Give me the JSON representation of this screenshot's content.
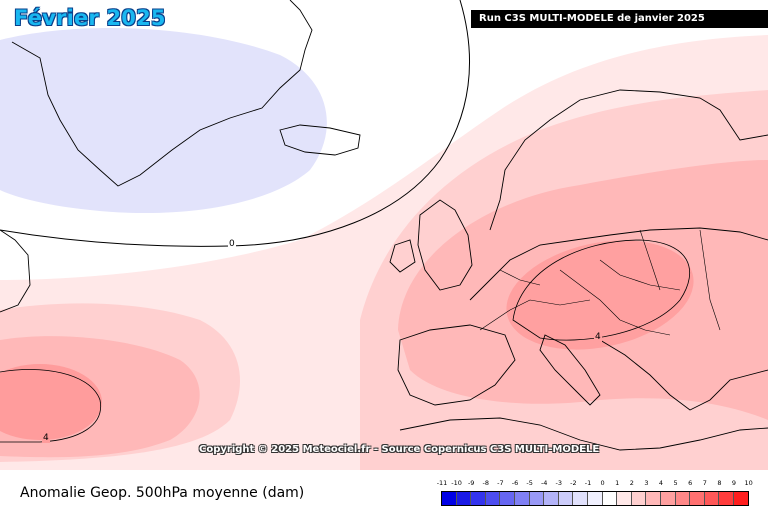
{
  "header": {
    "title": "Février 2025",
    "run_label": "Run C3S MULTI-MODELE de janvier 2025"
  },
  "map": {
    "copyright": "Copyright © 2025 Meteociel.fr - Source Copernicus C3S MULTI-MODELE",
    "contour_labels": [
      "0",
      "4",
      "4"
    ]
  },
  "footer": {
    "parameter_label": "Anomalie Geop. 500hPa moyenne (dam)"
  },
  "scale": {
    "ticks": [
      "-11",
      "-10",
      "-9",
      "-8",
      "-7",
      "-6",
      "-5",
      "-4",
      "-3",
      "-2",
      "-1",
      "0",
      "1",
      "2",
      "3",
      "4",
      "5",
      "6",
      "7",
      "8",
      "9",
      "10"
    ],
    "colors": [
      "#0000e6",
      "#1a1ae6",
      "#3333ee",
      "#4d4df0",
      "#6666f2",
      "#8080f4",
      "#9999f6",
      "#b3b3f8",
      "#ccccfa",
      "#e1e1fc",
      "#f0f0fe",
      "#ffffff",
      "#ffe8e8",
      "#ffd0d0",
      "#ffb8b8",
      "#ffa0a0",
      "#ff8888",
      "#ff7070",
      "#ff5858",
      "#ff3c3c",
      "#ff1e1e"
    ]
  }
}
